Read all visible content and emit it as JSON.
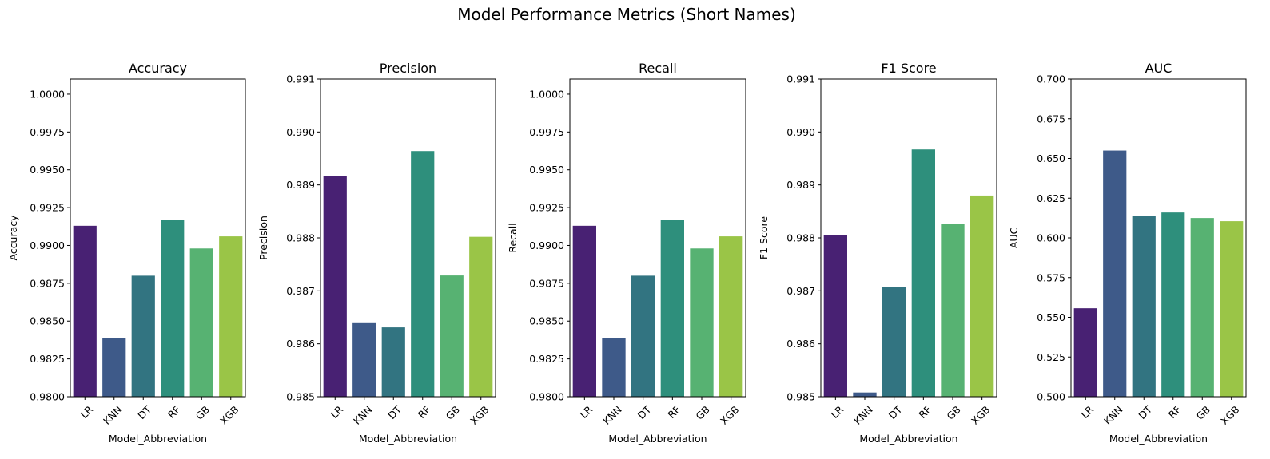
{
  "figure": {
    "title": "Model Performance Metrics (Short Names)"
  },
  "colors": [
    "#482173",
    "#3e5a89",
    "#327481",
    "#2e8f7c",
    "#57b272",
    "#9ac547"
  ],
  "chart_data": [
    {
      "type": "bar",
      "title": "Accuracy",
      "xlabel": "Model_Abbreviation",
      "ylabel": "Accuracy",
      "categories": [
        "LR",
        "KNN",
        "DT",
        "RF",
        "GB",
        "XGB"
      ],
      "values": [
        0.9913,
        0.9839,
        0.988,
        0.9917,
        0.9898,
        0.9906
      ],
      "ylim": [
        0.98,
        1.001
      ],
      "yticks": [
        "0.9800",
        "0.9825",
        "0.9850",
        "0.9875",
        "0.9900",
        "0.9925",
        "0.9950",
        "0.9975",
        "1.0000"
      ],
      "grid": false
    },
    {
      "type": "bar",
      "title": "Precision",
      "xlabel": "Model_Abbreviation",
      "ylabel": "Precision",
      "categories": [
        "LR",
        "KNN",
        "DT",
        "RF",
        "GB",
        "XGB"
      ],
      "values": [
        0.98917,
        0.98639,
        0.98631,
        0.98964,
        0.98729,
        0.98802
      ],
      "ylim": [
        0.985,
        0.991
      ],
      "yticks": [
        "0.985",
        "0.986",
        "0.987",
        "0.988",
        "0.989",
        "0.990",
        "0.991"
      ],
      "grid": false
    },
    {
      "type": "bar",
      "title": "Recall",
      "xlabel": "Model_Abbreviation",
      "ylabel": "Recall",
      "categories": [
        "LR",
        "KNN",
        "DT",
        "RF",
        "GB",
        "XGB"
      ],
      "values": [
        0.9913,
        0.9839,
        0.988,
        0.9917,
        0.9898,
        0.9906
      ],
      "ylim": [
        0.98,
        1.001
      ],
      "yticks": [
        "0.9800",
        "0.9825",
        "0.9850",
        "0.9875",
        "0.9900",
        "0.9925",
        "0.9950",
        "0.9975",
        "1.0000"
      ],
      "grid": false
    },
    {
      "type": "bar",
      "title": "F1 Score",
      "xlabel": "Model_Abbreviation",
      "ylabel": "F1 Score",
      "categories": [
        "LR",
        "KNN",
        "DT",
        "RF",
        "GB",
        "XGB"
      ],
      "values": [
        0.98806,
        0.98508,
        0.98707,
        0.98967,
        0.98826,
        0.9888
      ],
      "ylim": [
        0.985,
        0.991
      ],
      "yticks": [
        "0.985",
        "0.986",
        "0.987",
        "0.988",
        "0.989",
        "0.990",
        "0.991"
      ],
      "grid": false
    },
    {
      "type": "bar",
      "title": "AUC",
      "xlabel": "Model_Abbreviation",
      "ylabel": "AUC",
      "categories": [
        "LR",
        "KNN",
        "DT",
        "RF",
        "GB",
        "XGB"
      ],
      "values": [
        0.5557,
        0.655,
        0.614,
        0.616,
        0.6125,
        0.6105
      ],
      "ylim": [
        0.5,
        0.7
      ],
      "yticks": [
        "0.500",
        "0.525",
        "0.550",
        "0.575",
        "0.600",
        "0.625",
        "0.650",
        "0.675",
        "0.700"
      ],
      "grid": false
    }
  ]
}
